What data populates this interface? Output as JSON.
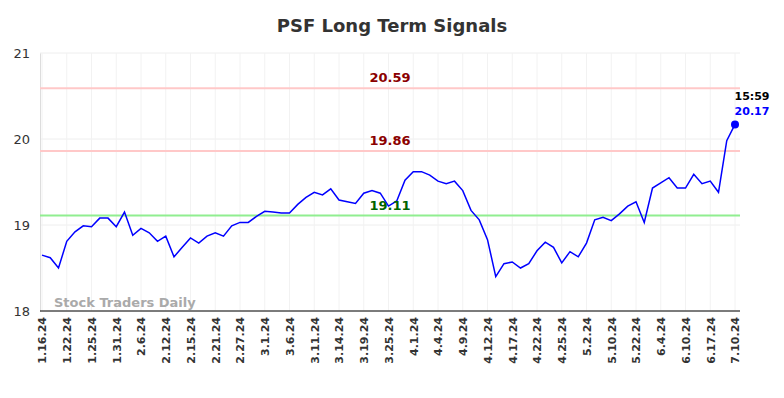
{
  "chart_data": {
    "type": "line",
    "title": "PSF Long Term Signals",
    "color": "#0000ff",
    "grid": true,
    "categories": [
      "1.16.24",
      null,
      null,
      "1.22.24",
      null,
      null,
      "1.25.24",
      null,
      null,
      "1.31.24",
      null,
      null,
      "2.6.24",
      null,
      null,
      "2.12.24",
      null,
      null,
      "2.15.24",
      null,
      null,
      "2.21.24",
      null,
      null,
      "2.27.24",
      null,
      null,
      "3.1.24",
      null,
      null,
      "3.6.24",
      null,
      null,
      "3.11.24",
      null,
      null,
      "3.14.24",
      null,
      null,
      "3.19.24",
      null,
      null,
      "3.25.24",
      null,
      null,
      "4.1.24",
      null,
      null,
      "4.4.24",
      null,
      null,
      "4.9.24",
      null,
      null,
      "4.12.24",
      null,
      null,
      "4.17.24",
      null,
      null,
      "4.22.24",
      null,
      null,
      "4.25.24",
      null,
      null,
      "5.2.24",
      null,
      null,
      "5.10.24",
      null,
      null,
      "5.22.24",
      null,
      null,
      "6.4.24",
      null,
      null,
      "6.10.24",
      null,
      null,
      "6.17.24",
      null,
      null,
      "7.10.24"
    ],
    "values": [
      18.65,
      18.62,
      18.5,
      18.81,
      18.92,
      18.99,
      18.98,
      19.08,
      19.08,
      18.98,
      19.15,
      18.88,
      18.96,
      18.91,
      18.81,
      18.87,
      18.63,
      18.74,
      18.85,
      18.79,
      18.87,
      18.91,
      18.87,
      18.99,
      19.03,
      19.03,
      19.1,
      19.16,
      19.15,
      19.14,
      19.14,
      19.24,
      19.32,
      19.38,
      19.35,
      19.42,
      19.29,
      19.27,
      19.25,
      19.37,
      19.4,
      19.37,
      19.22,
      19.28,
      19.52,
      19.62,
      19.62,
      19.58,
      19.51,
      19.48,
      19.51,
      19.4,
      19.17,
      19.06,
      18.83,
      18.4,
      18.55,
      18.57,
      18.5,
      18.55,
      18.7,
      18.8,
      18.74,
      18.56,
      18.69,
      18.63,
      18.79,
      19.06,
      19.09,
      19.05,
      19.13,
      19.22,
      19.27,
      19.03,
      19.43,
      19.49,
      19.55,
      19.43,
      19.43,
      19.59,
      19.48,
      19.51,
      19.38,
      19.98,
      20.17
    ],
    "ylim": [
      18,
      21
    ],
    "yticks": [
      18,
      19,
      20,
      21
    ],
    "horizontal_lines": [
      {
        "value": 20.59,
        "color": "#ffc8c8",
        "label_color": "#8b0000"
      },
      {
        "value": 19.86,
        "color": "#ffc8c8",
        "label_color": "#8b0000"
      },
      {
        "value": 19.11,
        "color": "#90ee90",
        "label_color": "#006400"
      }
    ],
    "annotations": [
      {
        "text": "15:59"
      },
      {
        "text": "Stock Traders Daily"
      }
    ]
  }
}
